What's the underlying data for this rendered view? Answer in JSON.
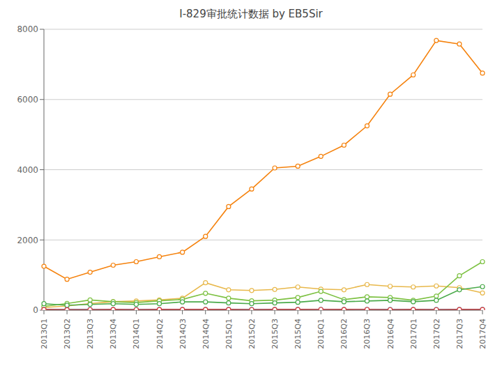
{
  "chart_data": {
    "type": "line",
    "title": "I-829审批统计数据 by EB5Sir",
    "categories": [
      "2013Q1",
      "2013Q2",
      "2013Q3",
      "2013Q4",
      "2014Q1",
      "2014Q2",
      "2014Q3",
      "2014Q4",
      "2015Q1",
      "2015Q2",
      "2015Q3",
      "2015Q4",
      "2016Q1",
      "2016Q2",
      "2016Q3",
      "2016Q4",
      "2017Q1",
      "2017Q2",
      "2017Q3",
      "2017Q4"
    ],
    "series": [
      {
        "color": "#f5820d",
        "values": [
          1250,
          880,
          1080,
          1280,
          1380,
          1520,
          1650,
          2100,
          2950,
          3450,
          4050,
          4100,
          4380,
          4700,
          5250,
          6150,
          6700,
          7680,
          7580,
          6750
        ]
      },
      {
        "color": "#e8b84b",
        "values": [
          75,
          120,
          190,
          240,
          260,
          290,
          340,
          780,
          580,
          560,
          590,
          660,
          600,
          580,
          730,
          680,
          660,
          690,
          640,
          490
        ]
      },
      {
        "color": "#7dc142",
        "values": [
          110,
          190,
          290,
          240,
          215,
          265,
          305,
          480,
          340,
          265,
          285,
          360,
          535,
          300,
          380,
          360,
          280,
          400,
          980,
          1380
        ]
      },
      {
        "color": "#4aaa4a",
        "values": [
          185,
          140,
          165,
          185,
          165,
          185,
          235,
          235,
          205,
          185,
          205,
          225,
          280,
          240,
          260,
          280,
          240,
          280,
          580,
          670
        ]
      },
      {
        "color": "#5bc8e8",
        "values": [
          25,
          25,
          25,
          25,
          25,
          25,
          25,
          25,
          25,
          25,
          25,
          25,
          25,
          25,
          25,
          25,
          25,
          25,
          25,
          25
        ]
      },
      {
        "color": "#e03030",
        "values": [
          18,
          12,
          15,
          18,
          15,
          18,
          18,
          18,
          18,
          15,
          18,
          18,
          20,
          18,
          20,
          15,
          18,
          15,
          18,
          18
        ]
      }
    ],
    "ylim": [
      0,
      8000
    ],
    "yticks": [
      0,
      2000,
      4000,
      6000,
      8000
    ],
    "grid": true,
    "marker": "circle"
  }
}
